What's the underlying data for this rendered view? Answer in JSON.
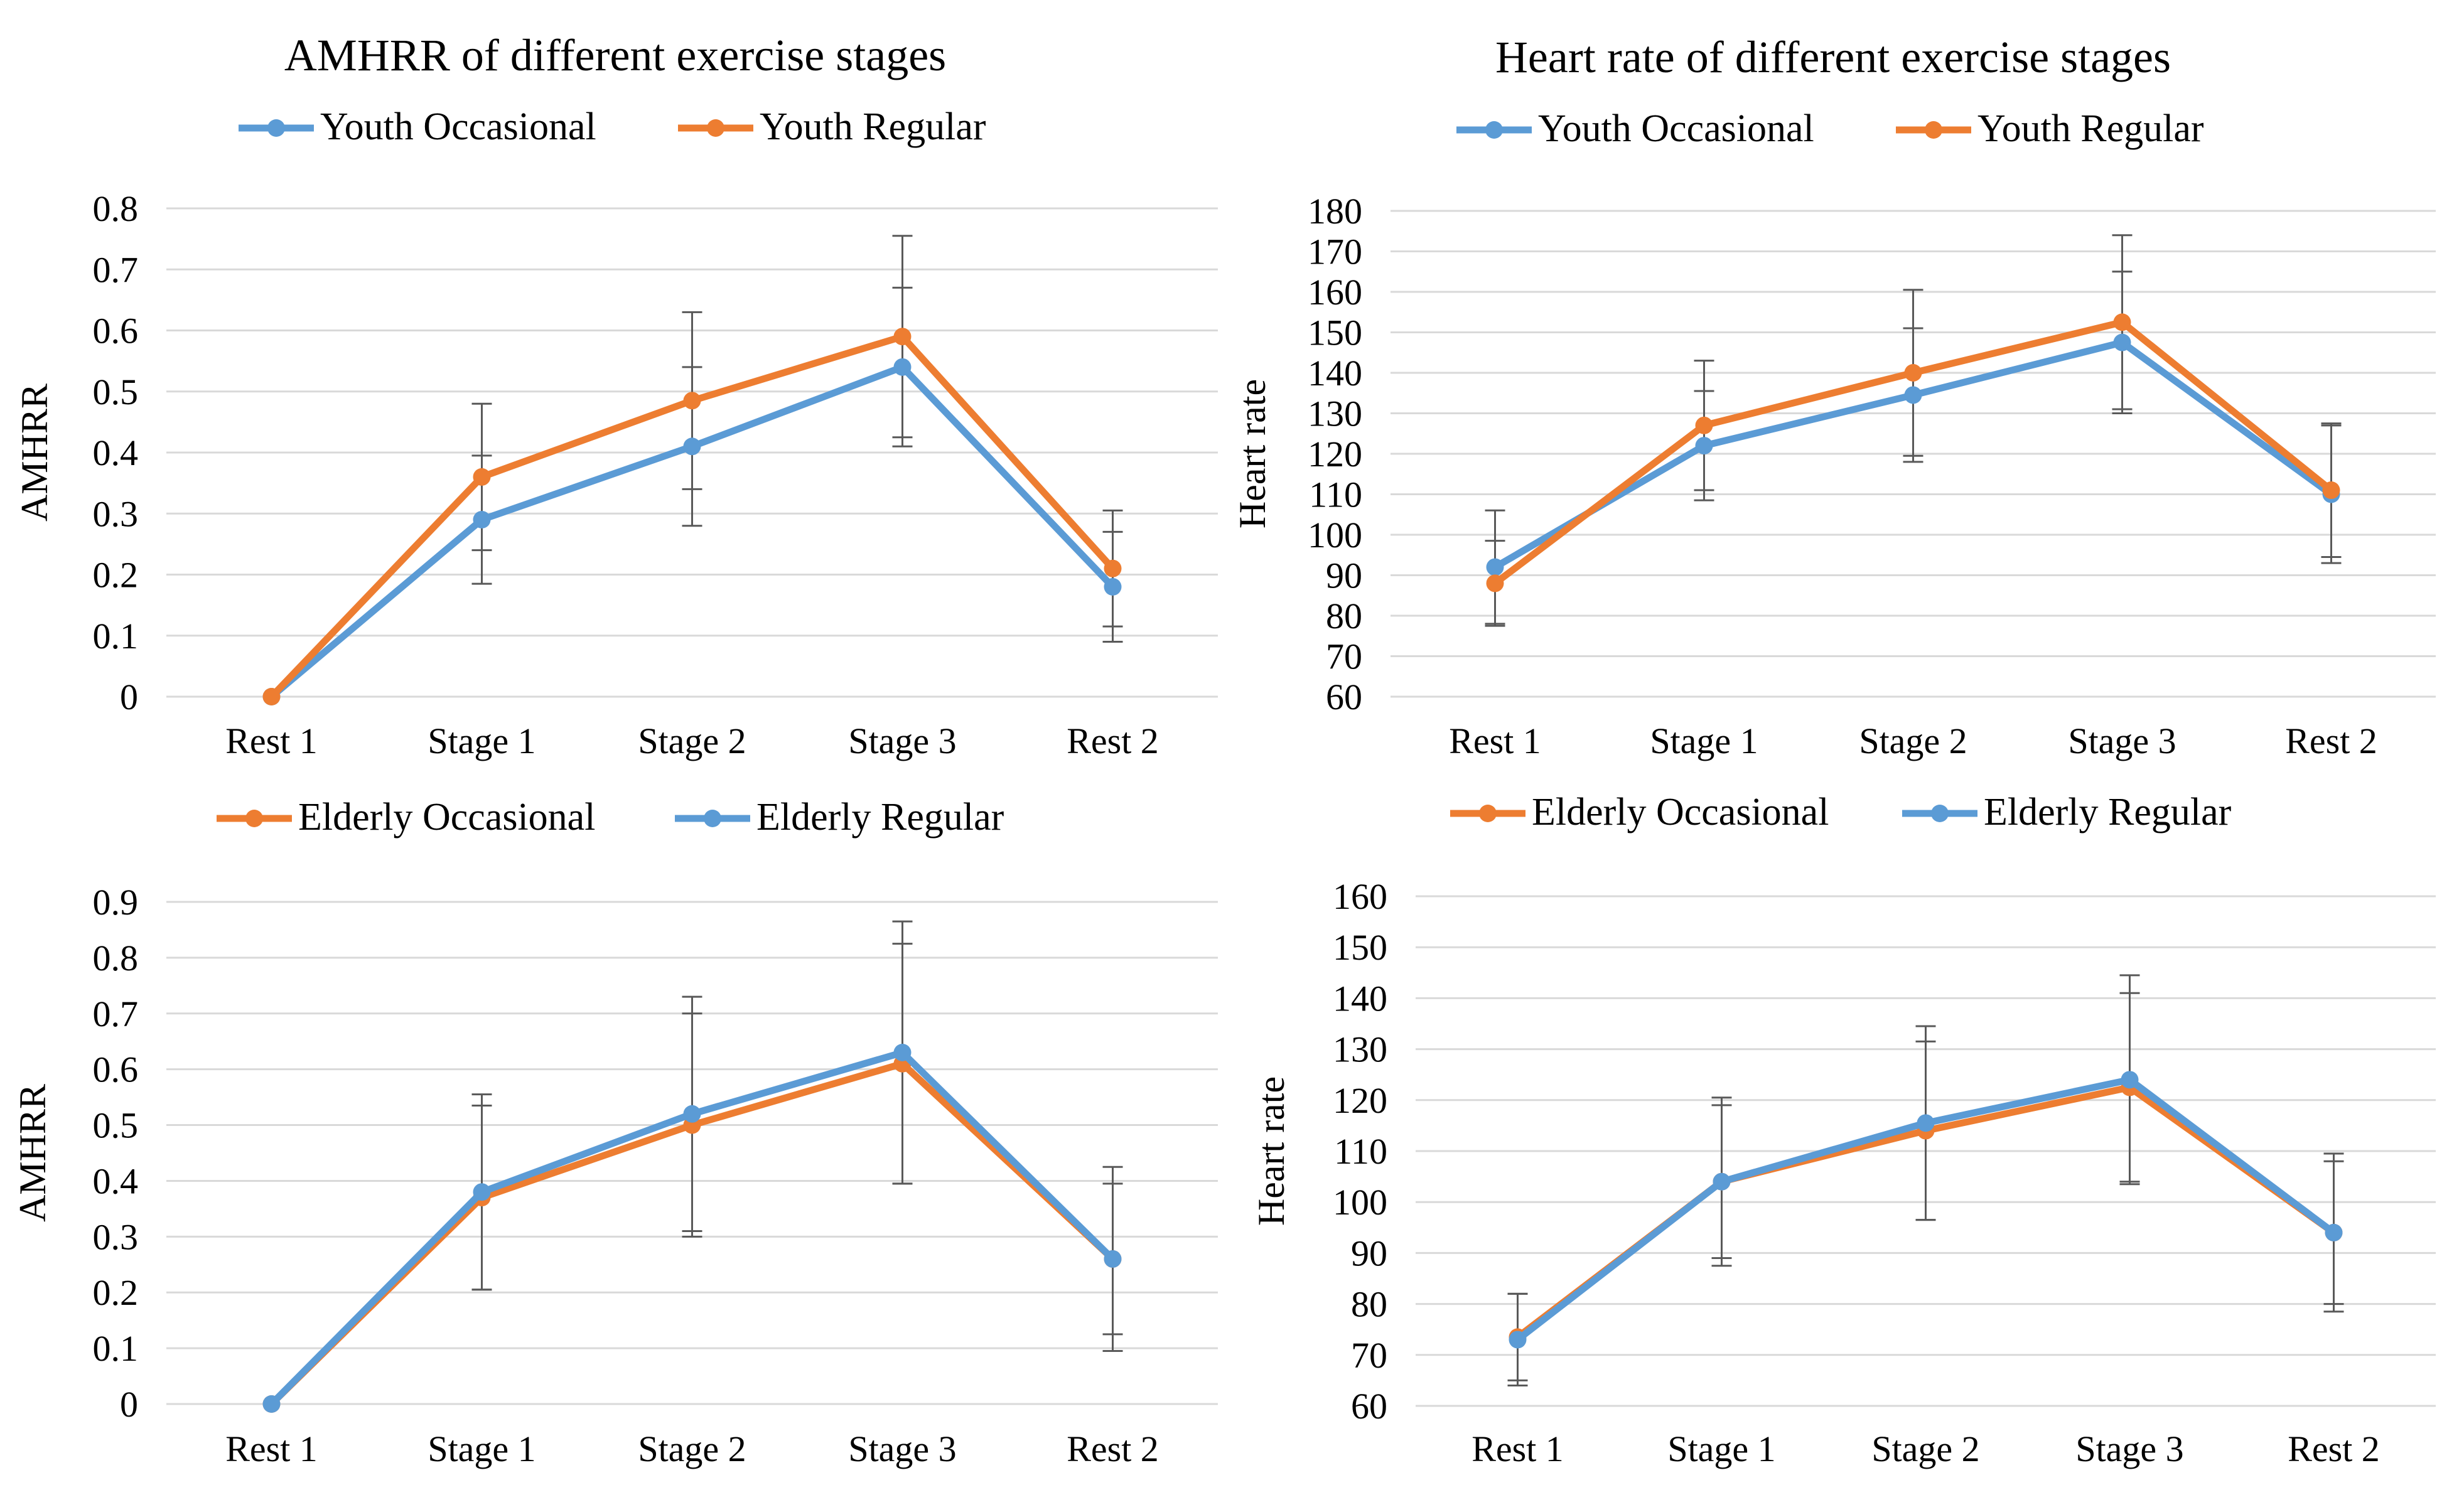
{
  "colors": {
    "blue": "#5b9bd5",
    "orange": "#ed7d31",
    "grid": "#d9d9d9",
    "errorbar": "#595959"
  },
  "chart_data": [
    {
      "type": "line",
      "title": "AMHRR of different exercise stages",
      "xlabel": "",
      "ylabel": "AMHRR",
      "categories": [
        "Rest 1",
        "Stage 1",
        "Stage 2",
        "Stage 3",
        "Rest 2"
      ],
      "ylim": [
        0,
        0.8
      ],
      "yticks": [
        0,
        0.1,
        0.2,
        0.3,
        0.4,
        0.5,
        0.6,
        0.7,
        0.8
      ],
      "ytick_labels": [
        "0",
        "0.1",
        "0.2",
        "0.3",
        "0.4",
        "0.5",
        "0.6",
        "0.7",
        "0.8"
      ],
      "grid": true,
      "legend": "top",
      "series": [
        {
          "name": "Youth Occasional",
          "color": "#5b9bd5",
          "values": [
            0,
            0.29,
            0.41,
            0.54,
            0.18
          ],
          "errors": [
            0,
            0.105,
            0.13,
            0.13,
            0.09
          ]
        },
        {
          "name": "Youth Regular",
          "color": "#ed7d31",
          "values": [
            0,
            0.36,
            0.485,
            0.59,
            0.21
          ],
          "errors": [
            0,
            0.12,
            0.145,
            0.165,
            0.095
          ]
        }
      ]
    },
    {
      "type": "line",
      "title": "Heart rate of different exercise stages",
      "xlabel": "",
      "ylabel": "Heart rate",
      "categories": [
        "Rest 1",
        "Stage 1",
        "Stage 2",
        "Stage 3",
        "Rest 2"
      ],
      "ylim": [
        60,
        180
      ],
      "yticks": [
        60,
        70,
        80,
        90,
        100,
        110,
        120,
        130,
        140,
        150,
        160,
        170,
        180
      ],
      "ytick_labels": [
        "60",
        "70",
        "80",
        "90",
        "100",
        "110",
        "120",
        "130",
        "140",
        "150",
        "160",
        "170",
        "180"
      ],
      "grid": true,
      "legend": "top",
      "series": [
        {
          "name": "Youth Occasional",
          "color": "#5b9bd5",
          "values": [
            92,
            122,
            134.5,
            147.5,
            110
          ],
          "errors": [
            14,
            13.5,
            16.5,
            17.5,
            17
          ]
        },
        {
          "name": "Youth Regular",
          "color": "#ed7d31",
          "values": [
            88,
            127,
            140,
            152.5,
            111
          ],
          "errors": [
            10.5,
            16,
            20.5,
            21.5,
            16.5
          ]
        }
      ]
    },
    {
      "type": "line",
      "title": "",
      "xlabel": "",
      "ylabel": "AMHRR",
      "categories": [
        "Rest 1",
        "Stage 1",
        "Stage 2",
        "Stage 3",
        "Rest 2"
      ],
      "ylim": [
        0,
        0.9
      ],
      "yticks": [
        0,
        0.1,
        0.2,
        0.3,
        0.4,
        0.5,
        0.6,
        0.7,
        0.8,
        0.9
      ],
      "ytick_labels": [
        "0",
        "0.1",
        "0.2",
        "0.3",
        "0.4",
        "0.5",
        "0.6",
        "0.7",
        "0.8",
        "0.9"
      ],
      "grid": true,
      "legend": "top",
      "series": [
        {
          "name": "Elderly Occasional",
          "color": "#ed7d31",
          "values": [
            0,
            0.37,
            0.5,
            0.61,
            0.26
          ],
          "errors": [
            0,
            0.165,
            0.2,
            0.215,
            0.135
          ]
        },
        {
          "name": "Elderly Regular",
          "color": "#5b9bd5",
          "values": [
            0,
            0.38,
            0.52,
            0.63,
            0.26
          ],
          "errors": [
            0,
            0.175,
            0.21,
            0.235,
            0.165
          ]
        }
      ]
    },
    {
      "type": "line",
      "title": "",
      "xlabel": "",
      "ylabel": "Heart rate",
      "categories": [
        "Rest 1",
        "Stage 1",
        "Stage 2",
        "Stage 3",
        "Rest 2"
      ],
      "ylim": [
        60,
        160
      ],
      "yticks": [
        60,
        70,
        80,
        90,
        100,
        110,
        120,
        130,
        140,
        150,
        160
      ],
      "ytick_labels": [
        "60",
        "70",
        "80",
        "90",
        "100",
        "110",
        "120",
        "130",
        "140",
        "150",
        "160"
      ],
      "grid": true,
      "legend": "top",
      "series": [
        {
          "name": "Elderly Occasional",
          "color": "#ed7d31",
          "values": [
            73.5,
            104,
            114,
            122.5,
            94
          ],
          "errors": [
            8.5,
            15,
            17.5,
            18.5,
            14
          ]
        },
        {
          "name": "Elderly Regular",
          "color": "#5b9bd5",
          "values": [
            73,
            104,
            115.5,
            124,
            94
          ],
          "errors": [
            9,
            16.5,
            19,
            20.5,
            15.5
          ]
        }
      ]
    }
  ]
}
